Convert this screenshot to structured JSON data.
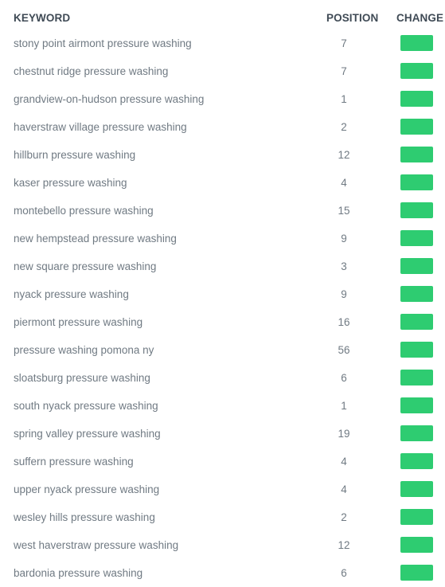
{
  "header": {
    "keyword": "KEYWORD",
    "position": "POSITION",
    "change": "CHANGE"
  },
  "colors": {
    "change_positive": "#2ecc71"
  },
  "rows": [
    {
      "keyword": "stony point airmont pressure washing",
      "position": "7"
    },
    {
      "keyword": "chestnut ridge pressure washing",
      "position": "7"
    },
    {
      "keyword": "grandview-on-hudson pressure washing",
      "position": "1"
    },
    {
      "keyword": "haverstraw village pressure washing",
      "position": "2"
    },
    {
      "keyword": "hillburn pressure washing",
      "position": "12"
    },
    {
      "keyword": "kaser pressure washing",
      "position": "4"
    },
    {
      "keyword": "montebello pressure washing",
      "position": "15"
    },
    {
      "keyword": "new hempstead pressure washing",
      "position": "9"
    },
    {
      "keyword": "new square pressure washing",
      "position": "3"
    },
    {
      "keyword": "nyack pressure washing",
      "position": "9"
    },
    {
      "keyword": "piermont pressure washing",
      "position": "16"
    },
    {
      "keyword": "pressure washing pomona ny",
      "position": "56"
    },
    {
      "keyword": "sloatsburg pressure washing",
      "position": "6"
    },
    {
      "keyword": "south nyack pressure washing",
      "position": "1"
    },
    {
      "keyword": "spring valley pressure washing",
      "position": "19"
    },
    {
      "keyword": "suffern pressure washing",
      "position": "4"
    },
    {
      "keyword": "upper nyack pressure washing",
      "position": "4"
    },
    {
      "keyword": "wesley hills pressure washing",
      "position": "2"
    },
    {
      "keyword": "west haverstraw pressure washing",
      "position": "12"
    },
    {
      "keyword": "bardonia pressure washing",
      "position": "6"
    }
  ]
}
